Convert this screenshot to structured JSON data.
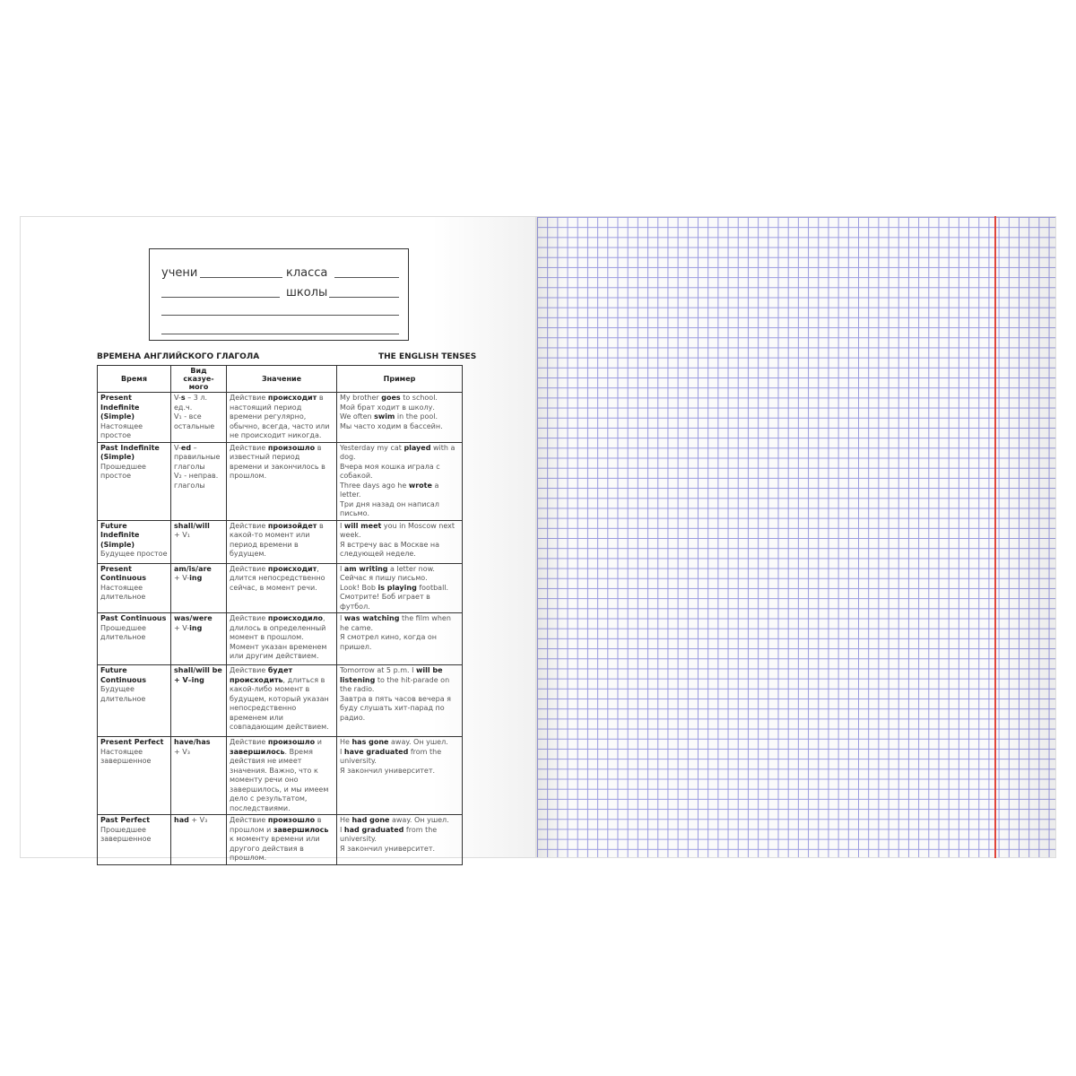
{
  "label": {
    "student": "учени",
    "grade": "класса",
    "school": "школы"
  },
  "table": {
    "title": "ВРЕМЕНА АНГЛИЙСКОГО ГЛАГОЛА",
    "title_en": "THE ENGLISH TENSES",
    "columns": [
      "Время",
      "Вид сказуе-\nмого",
      "Значение",
      "Пример"
    ],
    "rows": [
      [
        [
          {
            "text": "Present Indefinite (Simple)\n",
            "bold": true
          },
          {
            "text": "Настоящее простое",
            "bold": false
          }
        ],
        [
          {
            "text": "V-",
            "bold": false
          },
          {
            "text": "s",
            "bold": true
          },
          {
            "text": " – 3 л. ед.ч.\nV₁ - все остальные",
            "bold": false
          }
        ],
        [
          {
            "text": "Действие ",
            "bold": false
          },
          {
            "text": "происходит",
            "bold": true
          },
          {
            "text": " в настоящий период времени регулярно, обычно, всегда, часто или не происходит никогда.",
            "bold": false
          }
        ],
        [
          {
            "text": "My brother ",
            "bold": false
          },
          {
            "text": "goes",
            "bold": true
          },
          {
            "text": " to school.\nМой брат ходит в школу.\nWe often ",
            "bold": false
          },
          {
            "text": "swim",
            "bold": true
          },
          {
            "text": " in the pool.\nМы часто ходим в бассейн.",
            "bold": false
          }
        ]
      ],
      [
        [
          {
            "text": "Past Indefinite (Simple)\n",
            "bold": true
          },
          {
            "text": "Прошедшее простое",
            "bold": false
          }
        ],
        [
          {
            "text": "V-",
            "bold": false
          },
          {
            "text": "ed",
            "bold": true
          },
          {
            "text": " – правильные глаголы\nV₂ - неправ. глаголы",
            "bold": false
          }
        ],
        [
          {
            "text": "Действие ",
            "bold": false
          },
          {
            "text": "произошло",
            "bold": true
          },
          {
            "text": " в известный период времени и закончилось в прошлом.",
            "bold": false
          }
        ],
        [
          {
            "text": "Yesterday my cat ",
            "bold": false
          },
          {
            "text": "played",
            "bold": true
          },
          {
            "text": " with a dog.\nВчера моя кошка играла с собакой.\nThree days ago he ",
            "bold": false
          },
          {
            "text": "wrote",
            "bold": true
          },
          {
            "text": " a letter.\nТри дня назад он написал письмо.",
            "bold": false
          }
        ]
      ],
      [
        [
          {
            "text": "Future Indefinite (Simple)\n",
            "bold": true
          },
          {
            "text": "Будущее простое",
            "bold": false
          }
        ],
        [
          {
            "text": "shall/will",
            "bold": true
          },
          {
            "text": "\n+ V₁",
            "bold": false
          }
        ],
        [
          {
            "text": "Действие ",
            "bold": false
          },
          {
            "text": "произойдет",
            "bold": true
          },
          {
            "text": " в какой-то момент или период времени в будущем.",
            "bold": false
          }
        ],
        [
          {
            "text": "I ",
            "bold": false
          },
          {
            "text": "will meet",
            "bold": true
          },
          {
            "text": " you in Moscow next week.\nЯ встречу вас в Москве на следующей неделе.",
            "bold": false
          }
        ]
      ],
      [
        [
          {
            "text": "Present Continuous\n",
            "bold": true
          },
          {
            "text": "Настоящее длительное",
            "bold": false
          }
        ],
        [
          {
            "text": "am/is/are",
            "bold": true
          },
          {
            "text": "\n+ V-",
            "bold": false
          },
          {
            "text": "ing",
            "bold": true
          }
        ],
        [
          {
            "text": "Действие ",
            "bold": false
          },
          {
            "text": "происходит",
            "bold": true
          },
          {
            "text": ", длится непосредственно сейчас, в момент речи.",
            "bold": false
          }
        ],
        [
          {
            "text": "I ",
            "bold": false
          },
          {
            "text": "am writing",
            "bold": true
          },
          {
            "text": " a letter now.\nСейчас я пишу письмо.\nLook! Bob ",
            "bold": false
          },
          {
            "text": "is playing",
            "bold": true
          },
          {
            "text": " football.\nСмотрите! Боб играет в футбол.",
            "bold": false
          }
        ]
      ],
      [
        [
          {
            "text": "Past Continuous\n",
            "bold": true
          },
          {
            "text": "Прошедшее длительное",
            "bold": false
          }
        ],
        [
          {
            "text": "was/were",
            "bold": true
          },
          {
            "text": "\n+ V-",
            "bold": false
          },
          {
            "text": "ing",
            "bold": true
          }
        ],
        [
          {
            "text": "Действие ",
            "bold": false
          },
          {
            "text": "происходило",
            "bold": true
          },
          {
            "text": ", длилось в определенный момент в прошлом. Момент указан временем или другим действием.",
            "bold": false
          }
        ],
        [
          {
            "text": "I ",
            "bold": false
          },
          {
            "text": "was watching",
            "bold": true
          },
          {
            "text": " the film when he came.\nЯ смотрел кино, когда он пришел.",
            "bold": false
          }
        ]
      ],
      [
        [
          {
            "text": "Future Continuous\n",
            "bold": true
          },
          {
            "text": "Будущее длительное",
            "bold": false
          }
        ],
        [
          {
            "text": "shall/will be\n+ V–ing",
            "bold": true
          }
        ],
        [
          {
            "text": "Действие ",
            "bold": false
          },
          {
            "text": "будет происходить",
            "bold": true
          },
          {
            "text": ", длиться в какой-либо момент в будущем, который указан непосредственно временем или совпадающим действием.",
            "bold": false
          }
        ],
        [
          {
            "text": "Tomorrow at 5 p.m. I ",
            "bold": false
          },
          {
            "text": "will be listening",
            "bold": true
          },
          {
            "text": " to the hit-parade on the radio.\nЗавтра в пять часов вечера я буду слушать хит-парад по радио.",
            "bold": false
          }
        ]
      ],
      [
        [
          {
            "text": "Present Perfect\n",
            "bold": true
          },
          {
            "text": "Настоящее завершенное",
            "bold": false
          }
        ],
        [
          {
            "text": "have/has",
            "bold": true
          },
          {
            "text": "\n+ V₃",
            "bold": false
          }
        ],
        [
          {
            "text": "Действие ",
            "bold": false
          },
          {
            "text": "произошло",
            "bold": true
          },
          {
            "text": " и ",
            "bold": false
          },
          {
            "text": "завершилось",
            "bold": true
          },
          {
            "text": ". Время действия не имеет значения. Важно, что к моменту речи оно завершилось, и мы имеем дело с результатом, последствиями.",
            "bold": false
          }
        ],
        [
          {
            "text": "He ",
            "bold": false
          },
          {
            "text": "has gone",
            "bold": true
          },
          {
            "text": " away. Он ушел.\nI ",
            "bold": false
          },
          {
            "text": "have graduated",
            "bold": true
          },
          {
            "text": " from the university.\nЯ закончил университет.",
            "bold": false
          }
        ]
      ],
      [
        [
          {
            "text": "Past Perfect\n",
            "bold": true
          },
          {
            "text": "Прошедшее завершенное",
            "bold": false
          }
        ],
        [
          {
            "text": "had",
            "bold": true
          },
          {
            "text": " + V₃",
            "bold": false
          }
        ],
        [
          {
            "text": "Действие ",
            "bold": false
          },
          {
            "text": "произошло",
            "bold": true
          },
          {
            "text": " в прошлом и ",
            "bold": false
          },
          {
            "text": "завершилось",
            "bold": true
          },
          {
            "text": " к моменту времени или другого действия в прошлом.",
            "bold": false
          }
        ],
        [
          {
            "text": "He ",
            "bold": false
          },
          {
            "text": "had gone",
            "bold": true
          },
          {
            "text": " away. Он ушел.\nI ",
            "bold": false
          },
          {
            "text": "had graduated",
            "bold": true
          },
          {
            "text": " from the university.\nЯ закончил университет.",
            "bold": false
          }
        ]
      ]
    ]
  }
}
